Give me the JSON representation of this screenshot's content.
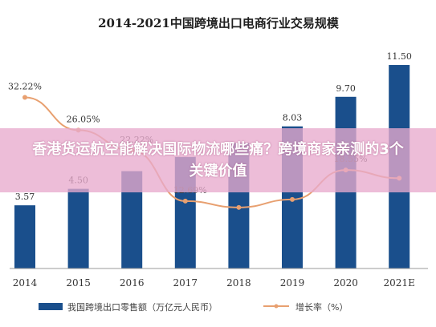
{
  "chart_data": {
    "type": "bar",
    "title": "2014-2021中国跨境出口电商行业交易规模",
    "categories": [
      "2014",
      "2015",
      "2016",
      "2017",
      "2018",
      "2019",
      "2020",
      "2021E"
    ],
    "ylim": [
      0,
      12
    ],
    "series": [
      {
        "name": "我国跨境出口零售额（万亿元人民币）",
        "type": "bar",
        "values": [
          3.57,
          4.5,
          5.5,
          6.3,
          7.1,
          8.03,
          9.7,
          11.5
        ],
        "labels": [
          "3.57",
          "4.50",
          "",
          "",
          "",
          "8.03",
          "9.70",
          "11.50"
        ],
        "color": "#1a4f8c"
      },
      {
        "name": "增长率（%）",
        "type": "line",
        "values": [
          32.22,
          26.05,
          22.22,
          12.69,
          11.5,
          13.0,
          18.55,
          17.0
        ],
        "labels": [
          "32.22%",
          "26.05%",
          "22.22%",
          "12.69%",
          "",
          "",
          "18.55%",
          ""
        ],
        "color": "#e8a070",
        "ylim": [
          0,
          40
        ]
      }
    ],
    "legend_position": "bottom",
    "grid": false
  },
  "banner": {
    "text": "香港货运航空能解决国际物流哪些痛？跨境商家亲测的3个关键价值"
  }
}
